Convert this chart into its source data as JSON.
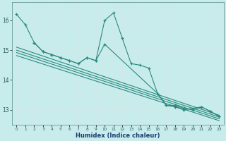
{
  "xlabel": "Humidex (Indice chaleur)",
  "bg_color": "#c8ecec",
  "grid_color": "#b8d8d8",
  "line_color": "#2a8a7e",
  "xlim": [
    -0.5,
    23.5
  ],
  "ylim": [
    12.5,
    16.6
  ],
  "yticks": [
    13,
    14,
    15,
    16
  ],
  "xticks": [
    0,
    1,
    2,
    3,
    4,
    5,
    6,
    7,
    8,
    9,
    10,
    11,
    12,
    13,
    14,
    15,
    16,
    17,
    18,
    19,
    20,
    21,
    22,
    23
  ],
  "series1_x": [
    0,
    1,
    2,
    3,
    4,
    5,
    6,
    7,
    8,
    9,
    10,
    11,
    12,
    13,
    14,
    15,
    16,
    17,
    18,
    19,
    20,
    21,
    22,
    23
  ],
  "series1_y": [
    16.2,
    15.85,
    15.25,
    14.95,
    14.85,
    14.75,
    14.65,
    14.55,
    14.75,
    14.65,
    16.0,
    16.25,
    15.4,
    14.55,
    14.5,
    14.4,
    13.55,
    13.15,
    13.15,
    13.05,
    13.0,
    13.1,
    12.95,
    12.78
  ],
  "series2_x": [
    2,
    3,
    4,
    5,
    6,
    7,
    8,
    9,
    10,
    16,
    17,
    18,
    19,
    20,
    21,
    22,
    23
  ],
  "series2_y": [
    15.25,
    14.95,
    14.85,
    14.75,
    14.65,
    14.55,
    14.75,
    14.65,
    15.2,
    13.55,
    13.15,
    13.1,
    13.0,
    13.05,
    13.1,
    12.95,
    12.78
  ],
  "trend_lines": [
    [
      0,
      15.1,
      23,
      12.82
    ],
    [
      0,
      15.0,
      23,
      12.76
    ],
    [
      0,
      14.92,
      23,
      12.7
    ],
    [
      0,
      14.82,
      23,
      12.64
    ]
  ]
}
